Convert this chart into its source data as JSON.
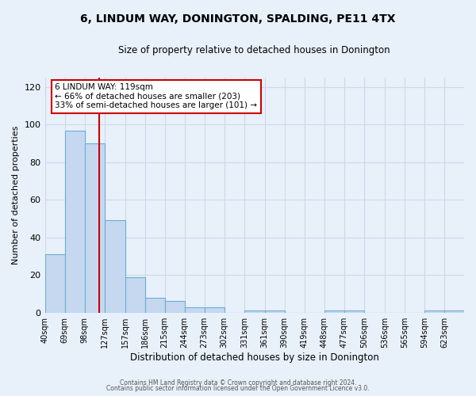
{
  "title": "6, LINDUM WAY, DONINGTON, SPALDING, PE11 4TX",
  "subtitle": "Size of property relative to detached houses in Donington",
  "xlabel": "Distribution of detached houses by size in Donington",
  "ylabel": "Number of detached properties",
  "bar_labels": [
    "40sqm",
    "69sqm",
    "98sqm",
    "127sqm",
    "157sqm",
    "186sqm",
    "215sqm",
    "244sqm",
    "273sqm",
    "302sqm",
    "331sqm",
    "361sqm",
    "390sqm",
    "419sqm",
    "448sqm",
    "477sqm",
    "506sqm",
    "536sqm",
    "565sqm",
    "594sqm",
    "623sqm"
  ],
  "bar_values": [
    31,
    97,
    90,
    49,
    19,
    8,
    6,
    3,
    3,
    0,
    1,
    1,
    0,
    0,
    1,
    1,
    0,
    0,
    0,
    1,
    1
  ],
  "bar_color": "#c5d8f0",
  "bar_edge_color": "#6aaed6",
  "bin_edges": [
    40,
    69,
    98,
    127,
    157,
    186,
    215,
    244,
    273,
    302,
    331,
    361,
    390,
    419,
    448,
    477,
    506,
    536,
    565,
    594,
    623,
    652
  ],
  "property_line_x": 119,
  "property_line_label": "6 LINDUM WAY: 119sqm",
  "annotation_line1": "← 66% of detached houses are smaller (203)",
  "annotation_line2": "33% of semi-detached houses are larger (101) →",
  "annotation_box_color": "#ffffff",
  "annotation_box_edge": "#cc0000",
  "vline_color": "#cc0000",
  "ylim": [
    0,
    125
  ],
  "yticks": [
    0,
    20,
    40,
    60,
    80,
    100,
    120
  ],
  "grid_color": "#d0d8e8",
  "bg_color": "#e8f0fa",
  "footer1": "Contains HM Land Registry data © Crown copyright and database right 2024.",
  "footer2": "Contains public sector information licensed under the Open Government Licence v3.0."
}
